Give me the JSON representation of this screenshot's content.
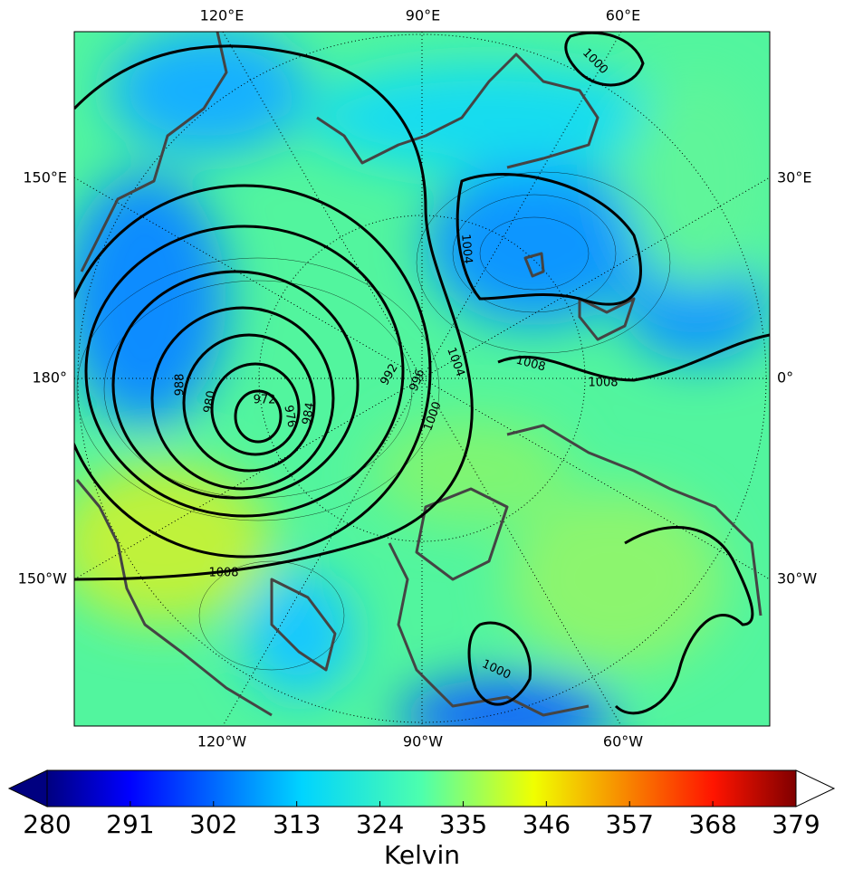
{
  "map": {
    "lon_labels_top": [
      "120°E",
      "90°E",
      "60°E"
    ],
    "lon_labels_bottom": [
      "120°W",
      "90°W",
      "60°W"
    ],
    "lon_labels_left": [
      "150°E",
      "180°",
      "150°W"
    ],
    "lon_labels_right": [
      "30°E",
      "0°",
      "30°W"
    ],
    "contour_labels": [
      972,
      976,
      980,
      984,
      988,
      992,
      996,
      1000,
      1004,
      1004,
      1008,
      1008,
      1008,
      1000,
      1000
    ]
  },
  "colorbar": {
    "label": "Kelvin",
    "lim": [
      280,
      379
    ],
    "ticks": [
      280,
      291,
      302,
      313,
      324,
      335,
      346,
      357,
      368,
      379
    ]
  }
}
